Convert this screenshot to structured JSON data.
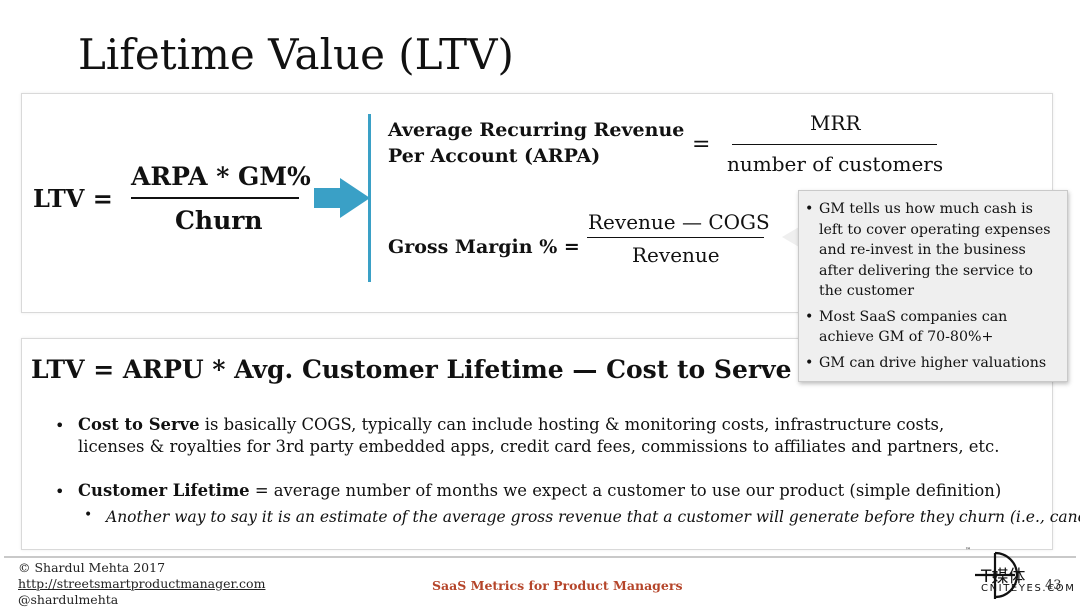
{
  "title": "Lifetime Value (LTV)",
  "formula1": {
    "lhs": "LTV =",
    "numerator": "ARPA * GM%",
    "denominator": "Churn"
  },
  "arpa": {
    "label_line1": "Average Recurring Revenue",
    "label_line2": "Per Account (ARPA)",
    "equals": "=",
    "numerator": "MRR",
    "denominator": "number of customers"
  },
  "gross_margin": {
    "label": "Gross Margin % =",
    "numerator": "Revenue — COGS",
    "denominator": "Revenue"
  },
  "callout": {
    "items": [
      "GM tells us how much cash is left to cover operating expenses and re-invest in the business after delivering the service to the customer",
      "Most SaaS companies can achieve GM of 70-80%+",
      "GM can drive higher valuations"
    ]
  },
  "formula2": "LTV = ARPU * Avg. Customer Lifetime — Cost to Serve",
  "bullets": {
    "cost_to_serve_term": "Cost to Serve",
    "cost_to_serve_text": " is basically COGS, typically can include hosting & monitoring costs, infrastructure costs, licenses & royalties for 3rd party embedded apps, credit card fees, commissions to affiliates and partners, etc.",
    "customer_lifetime_term": "Customer Lifetime",
    "customer_lifetime_text": " = average number of months we expect a customer to use our product (simple definition)",
    "sub_bullet": "Another way to say it is an estimate of the average gross revenue that a customer will generate before they churn (i.e., cancel)"
  },
  "footer": {
    "copyright": "© Shardul Mehta 2017",
    "url": "http://streetsmartproductmanager.com",
    "handle": "@shardulmehta",
    "center": "SaaS Metrics for Product Managers",
    "page_number": "43"
  },
  "watermark": {
    "cn": "T媒体",
    "en": "CNITEYES.COM",
    "tm": "™"
  },
  "colors": {
    "accent_blue": "#3aa0c6",
    "footer_red": "#b5452a",
    "callout_bg": "#efefef"
  }
}
